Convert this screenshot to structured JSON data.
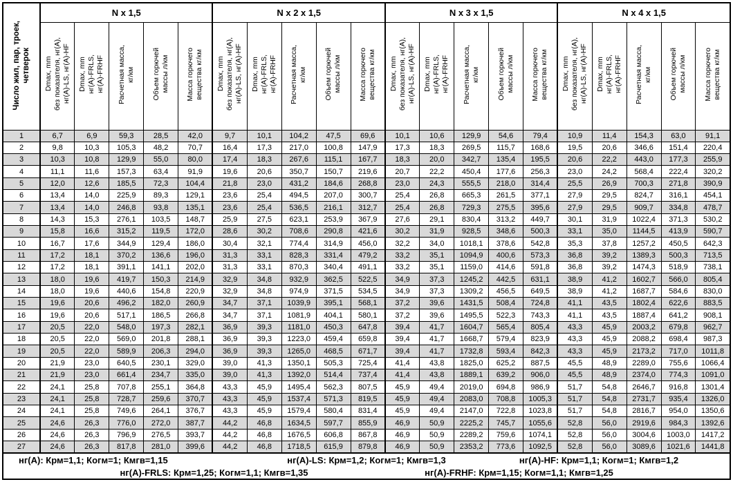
{
  "table": {
    "corner_header": "Число жил, пар, троек,\nчетверок",
    "groups": [
      {
        "title": "N x 1,5"
      },
      {
        "title": "N x 2 x 1,5"
      },
      {
        "title": "N x 3 x 1,5"
      },
      {
        "title": "N x 4 x 1,5"
      }
    ],
    "subheaders": [
      "Dmax, mm\nбез показателя, нг(А),\nнг(А)-LS, нг(А)-HF",
      "Dmax, mm\nнг(А)-FRLS,\nнг(А)-FRHF",
      "Расчетная масса,\nкг/км",
      "Объем горючей\nмассы л/км",
      "Масса горючего\nвещества кг/км"
    ],
    "stripe_color": "#d9d9d9",
    "border_color": "#000000",
    "rows": [
      [
        "1",
        "6,7",
        "6,9",
        "59,3",
        "28,5",
        "42,0",
        "9,7",
        "10,1",
        "104,2",
        "47,5",
        "69,6",
        "10,1",
        "10,6",
        "129,9",
        "54,6",
        "79,4",
        "10,9",
        "11,4",
        "154,3",
        "63,0",
        "91,1"
      ],
      [
        "2",
        "9,8",
        "10,3",
        "105,3",
        "48,2",
        "70,7",
        "16,4",
        "17,3",
        "217,0",
        "100,8",
        "147,9",
        "17,3",
        "18,3",
        "269,5",
        "115,7",
        "168,6",
        "19,5",
        "20,6",
        "346,6",
        "151,4",
        "220,4"
      ],
      [
        "3",
        "10,3",
        "10,8",
        "129,9",
        "55,0",
        "80,0",
        "17,4",
        "18,3",
        "267,6",
        "115,1",
        "167,7",
        "18,3",
        "20,0",
        "342,7",
        "135,4",
        "195,5",
        "20,6",
        "22,2",
        "443,0",
        "177,3",
        "255,9"
      ],
      [
        "4",
        "11,1",
        "11,6",
        "157,3",
        "63,4",
        "91,9",
        "19,6",
        "20,6",
        "350,7",
        "150,7",
        "219,6",
        "20,7",
        "22,2",
        "450,4",
        "177,6",
        "256,3",
        "23,0",
        "24,2",
        "568,4",
        "222,4",
        "320,2"
      ],
      [
        "5",
        "12,0",
        "12,6",
        "185,5",
        "72,3",
        "104,4",
        "21,8",
        "23,0",
        "431,2",
        "184,6",
        "268,8",
        "23,0",
        "24,3",
        "555,5",
        "218,0",
        "314,4",
        "25,5",
        "26,9",
        "700,3",
        "271,8",
        "390,9"
      ],
      [
        "6",
        "13,4",
        "14,0",
        "225,9",
        "89,3",
        "129,1",
        "23,6",
        "25,4",
        "494,5",
        "207,0",
        "300,7",
        "25,4",
        "26,8",
        "665,3",
        "261,5",
        "377,1",
        "27,9",
        "29,5",
        "824,7",
        "316,1",
        "454,1"
      ],
      [
        "7",
        "13,4",
        "14,0",
        "246,8",
        "93,8",
        "135,1",
        "23,6",
        "25,4",
        "536,5",
        "216,1",
        "312,7",
        "25,4",
        "26,8",
        "729,3",
        "275,5",
        "395,6",
        "27,9",
        "29,5",
        "909,7",
        "334,8",
        "478,7"
      ],
      [
        "8",
        "14,3",
        "15,3",
        "276,1",
        "103,5",
        "148,7",
        "25,9",
        "27,5",
        "623,1",
        "253,9",
        "367,9",
        "27,6",
        "29,1",
        "830,4",
        "313,2",
        "449,7",
        "30,1",
        "31,9",
        "1022,4",
        "371,3",
        "530,2"
      ],
      [
        "9",
        "15,8",
        "16,6",
        "315,2",
        "119,5",
        "172,0",
        "28,6",
        "30,2",
        "708,6",
        "290,8",
        "421,6",
        "30,2",
        "31,9",
        "928,5",
        "348,6",
        "500,3",
        "33,1",
        "35,0",
        "1144,5",
        "413,9",
        "590,7"
      ],
      [
        "10",
        "16,7",
        "17,6",
        "344,9",
        "129,4",
        "186,0",
        "30,4",
        "32,1",
        "774,4",
        "314,9",
        "456,0",
        "32,2",
        "34,0",
        "1018,1",
        "378,6",
        "542,8",
        "35,3",
        "37,8",
        "1257,2",
        "450,5",
        "642,3"
      ],
      [
        "11",
        "17,2",
        "18,1",
        "370,2",
        "136,6",
        "196,0",
        "31,3",
        "33,1",
        "828,3",
        "331,4",
        "479,2",
        "33,2",
        "35,1",
        "1094,9",
        "400,6",
        "573,3",
        "36,8",
        "39,2",
        "1389,3",
        "500,3",
        "713,5"
      ],
      [
        "12",
        "17,2",
        "18,1",
        "391,1",
        "141,1",
        "202,0",
        "31,3",
        "33,1",
        "870,3",
        "340,4",
        "491,1",
        "33,2",
        "35,1",
        "1159,0",
        "414,6",
        "591,8",
        "36,8",
        "39,2",
        "1474,3",
        "518,9",
        "738,1"
      ],
      [
        "13",
        "18,0",
        "19,6",
        "419,7",
        "150,3",
        "214,9",
        "32,9",
        "34,8",
        "932,9",
        "362,5",
        "522,5",
        "34,9",
        "37,3",
        "1245,2",
        "442,5",
        "631,1",
        "38,9",
        "41,2",
        "1602,7",
        "566,0",
        "805,4"
      ],
      [
        "14",
        "18,0",
        "19,6",
        "440,6",
        "154,8",
        "220,9",
        "32,9",
        "34,8",
        "974,9",
        "371,5",
        "534,5",
        "34,9",
        "37,3",
        "1309,2",
        "456,5",
        "649,5",
        "38,9",
        "41,2",
        "1687,7",
        "584,6",
        "830,0"
      ],
      [
        "15",
        "19,6",
        "20,6",
        "496,2",
        "182,0",
        "260,9",
        "34,7",
        "37,1",
        "1039,9",
        "395,1",
        "568,1",
        "37,2",
        "39,6",
        "1431,5",
        "508,4",
        "724,8",
        "41,1",
        "43,5",
        "1802,4",
        "622,6",
        "883,5"
      ],
      [
        "16",
        "19,6",
        "20,6",
        "517,1",
        "186,5",
        "266,8",
        "34,7",
        "37,1",
        "1081,9",
        "404,1",
        "580,1",
        "37,2",
        "39,6",
        "1495,5",
        "522,3",
        "743,3",
        "41,1",
        "43,5",
        "1887,4",
        "641,2",
        "908,1"
      ],
      [
        "17",
        "20,5",
        "22,0",
        "548,0",
        "197,3",
        "282,1",
        "36,9",
        "39,3",
        "1181,0",
        "450,3",
        "647,8",
        "39,4",
        "41,7",
        "1604,7",
        "565,4",
        "805,4",
        "43,3",
        "45,9",
        "2003,2",
        "679,8",
        "962,7"
      ],
      [
        "18",
        "20,5",
        "22,0",
        "569,0",
        "201,8",
        "288,1",
        "36,9",
        "39,3",
        "1223,0",
        "459,4",
        "659,8",
        "39,4",
        "41,7",
        "1668,7",
        "579,4",
        "823,9",
        "43,3",
        "45,9",
        "2088,2",
        "698,4",
        "987,3"
      ],
      [
        "19",
        "20,5",
        "22,0",
        "589,9",
        "206,3",
        "294,0",
        "36,9",
        "39,3",
        "1265,0",
        "468,5",
        "671,7",
        "39,4",
        "41,7",
        "1732,8",
        "593,4",
        "842,3",
        "43,3",
        "45,9",
        "2173,2",
        "717,0",
        "1011,8"
      ],
      [
        "20",
        "21,9",
        "23,0",
        "640,5",
        "230,1",
        "329,0",
        "39,0",
        "41,3",
        "1350,1",
        "505,3",
        "725,4",
        "41,4",
        "43,8",
        "1825,0",
        "625,2",
        "887,5",
        "45,5",
        "48,9",
        "2289,0",
        "755,6",
        "1066,4"
      ],
      [
        "21",
        "21,9",
        "23,0",
        "661,4",
        "234,7",
        "335,0",
        "39,0",
        "41,3",
        "1392,0",
        "514,4",
        "737,4",
        "41,4",
        "43,8",
        "1889,1",
        "639,2",
        "906,0",
        "45,5",
        "48,9",
        "2374,0",
        "774,3",
        "1091,0"
      ],
      [
        "22",
        "24,1",
        "25,8",
        "707,8",
        "255,1",
        "364,8",
        "43,3",
        "45,9",
        "1495,4",
        "562,3",
        "807,5",
        "45,9",
        "49,4",
        "2019,0",
        "694,8",
        "986,9",
        "51,7",
        "54,8",
        "2646,7",
        "916,8",
        "1301,4"
      ],
      [
        "23",
        "24,1",
        "25,8",
        "728,7",
        "259,6",
        "370,7",
        "43,3",
        "45,9",
        "1537,4",
        "571,3",
        "819,5",
        "45,9",
        "49,4",
        "2083,0",
        "708,8",
        "1005,3",
        "51,7",
        "54,8",
        "2731,7",
        "935,4",
        "1326,0"
      ],
      [
        "24",
        "24,1",
        "25,8",
        "749,6",
        "264,1",
        "376,7",
        "43,3",
        "45,9",
        "1579,4",
        "580,4",
        "831,4",
        "45,9",
        "49,4",
        "2147,0",
        "722,8",
        "1023,8",
        "51,7",
        "54,8",
        "2816,7",
        "954,0",
        "1350,6"
      ],
      [
        "25",
        "24,6",
        "26,3",
        "776,0",
        "272,0",
        "387,7",
        "44,2",
        "46,8",
        "1634,5",
        "597,7",
        "855,9",
        "46,9",
        "50,9",
        "2225,2",
        "745,7",
        "1055,6",
        "52,8",
        "56,0",
        "2919,6",
        "984,3",
        "1392,6"
      ],
      [
        "26",
        "24,6",
        "26,3",
        "796,9",
        "276,5",
        "393,7",
        "44,2",
        "46,8",
        "1676,5",
        "606,8",
        "867,8",
        "46,9",
        "50,9",
        "2289,2",
        "759,6",
        "1074,1",
        "52,8",
        "56,0",
        "3004,6",
        "1003,0",
        "1417,2"
      ],
      [
        "27",
        "24,6",
        "26,3",
        "817,8",
        "281,0",
        "399,6",
        "44,2",
        "46,8",
        "1718,5",
        "615,9",
        "879,8",
        "46,9",
        "50,9",
        "2353,2",
        "773,6",
        "1092,5",
        "52,8",
        "56,0",
        "3089,6",
        "1021,6",
        "1441,8"
      ]
    ]
  },
  "footer": {
    "line1": [
      "нг(А): Крм=1,1;  Когм=1;  Кмгв=1,15",
      "нг(А)-LS: Крм=1,2;  Когм=1;  Кмгв=1,3",
      "нг(А)-HF: Крм=1,1;  Когм=1;  Кмгв=1,2"
    ],
    "line2": [
      "нг(А)-FRLS: Крм=1,25;  Когм=1,1;  Кмгв=1,35",
      "нг(А)-FRHF: Крм=1,15;  Когм=1,1;  Кмгв=1,25"
    ]
  }
}
